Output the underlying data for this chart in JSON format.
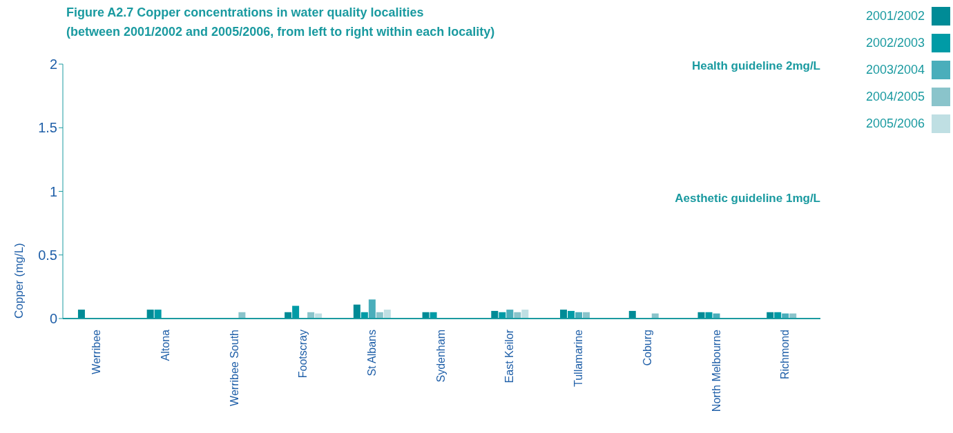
{
  "chart_data": {
    "type": "bar",
    "title": "Figure A2.7 Copper concentrations in water quality localities",
    "subtitle": "(between 2001/2002 and 2005/2006, from left to right within each locality)",
    "ylabel": "Copper (mg/L)",
    "categories": [
      "Werribee",
      "Altona",
      "Werribee South",
      "Footscray",
      "St Albans",
      "Sydenham",
      "East Keilor",
      "Tullamarine",
      "Coburg",
      "North Melbourne",
      "Richmond"
    ],
    "series": [
      {
        "name": "2001/2002",
        "color": "#008b96",
        "values": [
          0.07,
          0.07,
          null,
          0.05,
          0.11,
          0.05,
          0.06,
          0.07,
          0.06,
          0.05,
          0.05
        ]
      },
      {
        "name": "2002/2003",
        "color": "#009ba6",
        "values": [
          null,
          0.07,
          null,
          0.1,
          0.05,
          0.05,
          0.05,
          0.06,
          null,
          0.05,
          0.05
        ]
      },
      {
        "name": "2003/2004",
        "color": "#4aaebb",
        "values": [
          null,
          null,
          null,
          null,
          0.15,
          null,
          0.07,
          0.05,
          null,
          0.04,
          0.04
        ]
      },
      {
        "name": "2004/2005",
        "color": "#8ac4cb",
        "values": [
          null,
          null,
          0.05,
          0.05,
          0.05,
          null,
          0.05,
          0.05,
          0.04,
          null,
          0.04
        ]
      },
      {
        "name": "2005/2006",
        "color": "#bfdfe3",
        "values": [
          null,
          null,
          null,
          0.04,
          0.07,
          null,
          0.07,
          null,
          null,
          null,
          null
        ]
      }
    ],
    "ylim": [
      0,
      2
    ],
    "yticks": [
      0,
      {
        "value": 0.5,
        "label": "0.5"
      },
      1,
      {
        "value": 1.5,
        "label": "1.5"
      },
      2
    ],
    "annotations": [
      "Health guideline 2mg/L",
      "Aesthetic guideline 1mg/L"
    ],
    "grid": false,
    "legend": "top right"
  }
}
